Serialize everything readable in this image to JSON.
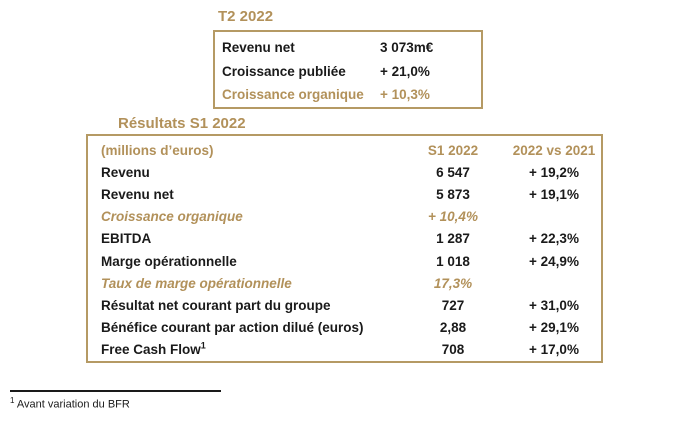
{
  "colors": {
    "gold_text": "#B2915A",
    "gold_border": "#B59A64",
    "black_text": "#1A1A1A",
    "background": "#FFFFFF"
  },
  "t2_box": {
    "title": "T2 2022",
    "rows": [
      {
        "label": "Revenu net",
        "value": "3 073m€"
      },
      {
        "label": "Croissance publiée",
        "value": "+ 21,0%"
      },
      {
        "label": "Croissance organique",
        "value": "+ 10,3%"
      }
    ]
  },
  "s1_table": {
    "title": "Résultats S1 2022",
    "header": {
      "col1": "(millions d’euros)",
      "col2": "S1 2022",
      "col3": "2022 vs 2021"
    },
    "rows": [
      {
        "label": "Revenu",
        "value": "6 547",
        "change": "+ 19,2%"
      },
      {
        "label": "Revenu net",
        "value": "5 873",
        "change": "+ 19,1%"
      },
      {
        "label": "Croissance organique",
        "value": "+ 10,4%",
        "change": ""
      },
      {
        "label": "EBITDA",
        "value": "1 287",
        "change": "+ 22,3%"
      },
      {
        "label": "Marge opérationnelle",
        "value": "1 018",
        "change": "+ 24,9%"
      },
      {
        "label": "Taux de marge opérationnelle",
        "value": "17,3%",
        "change": ""
      },
      {
        "label": "Résultat net courant part du groupe",
        "value": "727",
        "change": "+ 31,0%"
      },
      {
        "label": "Bénéfice courant par action dilué (euros)",
        "value": "2,88",
        "change": "+ 29,1%"
      },
      {
        "label": "Free Cash Flow",
        "footnote_marker": "1",
        "value": "708",
        "change": "+ 17,0%"
      }
    ]
  },
  "footnote": {
    "marker": "1",
    "text": " Avant variation du BFR"
  }
}
